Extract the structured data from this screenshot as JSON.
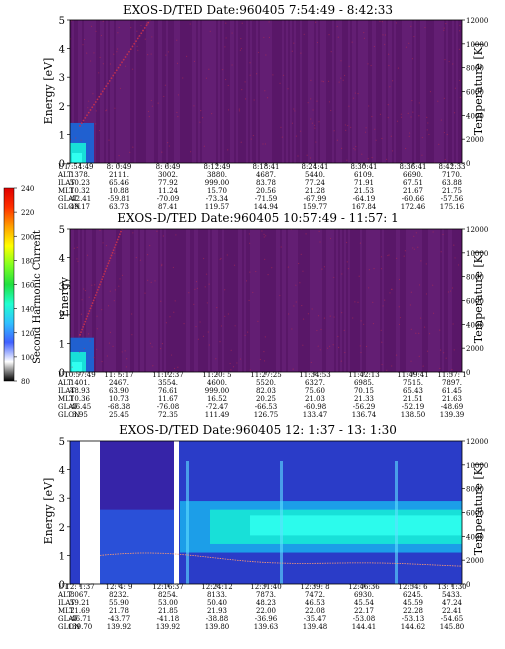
{
  "colors": {
    "background_dark": "#4a1060",
    "background_mid": "#6a2072",
    "background_light": "#5c1e74",
    "band_low": "#2060d0",
    "band_high": "#18e0d8",
    "band_core": "#30fff0",
    "trace_dots": "#c03050",
    "temperature_line": "#ff9a70"
  },
  "colorbar": {
    "label": "Second Harmonic Current",
    "ticks": [
      "80",
      "100",
      "120",
      "140",
      "160",
      "180",
      "200",
      "220",
      "240"
    ],
    "stops": [
      "#000000",
      "#ffffff",
      "#4060ff",
      "#30c0ff",
      "#20ffd0",
      "#20e040",
      "#80ff20",
      "#ffff00",
      "#ffa000",
      "#ff3000",
      "#e00000"
    ]
  },
  "chart_data": [
    {
      "type": "heatmap",
      "title": "EXOS-D/TED   Date:960405  7:54:49 - 8:42:33",
      "ylabel": "Energy [eV]",
      "y2label": "Temperature [K]",
      "ylim": [
        0,
        5
      ],
      "y_ticks": [
        "0",
        "1",
        "2",
        "3",
        "4",
        "5"
      ],
      "y2lim": [
        0,
        12000
      ],
      "y2_ticks": [
        "0",
        "2000",
        "4000",
        "6000",
        "8000",
        "10000",
        "12000"
      ],
      "row_labels": [
        "UT",
        "ALT",
        "ILAT",
        "MLT",
        "GLAT",
        "GLON"
      ],
      "columns": [
        [
          "7:54:49",
          "1378.",
          "50.23",
          "10.32",
          "-42.41",
          "49.17"
        ],
        [
          "8: 0:49",
          "2111.",
          "65.46",
          "10.88",
          "-59.81",
          "63.73"
        ],
        [
          "8: 6:49",
          "3002.",
          "77.92",
          "11.24",
          "-70.09",
          "87.41"
        ],
        [
          "8:12:49",
          "3880.",
          "999.00",
          "15.70",
          "-73.34",
          "119.57"
        ],
        [
          "8:18:41",
          "4687.",
          "83.78",
          "20.56",
          "-71.59",
          "144.94"
        ],
        [
          "8:24:41",
          "5440.",
          "77.24",
          "21.28",
          "-67.99",
          "159.77"
        ],
        [
          "8:30:41",
          "6109.",
          "71.91",
          "21.53",
          "-64.19",
          "167.84"
        ],
        [
          "8:36:41",
          "6690.",
          "67.51",
          "21.67",
          "-60.66",
          "172.46"
        ],
        [
          "8:42:33",
          "7170.",
          "63.88",
          "21.75",
          "-57.56",
          "175.16"
        ]
      ]
    },
    {
      "type": "heatmap",
      "title": "EXOS-D/TED   Date:960405  10:57:49 - 11:57: 1",
      "ylabel": "Energy",
      "y2label": "Temperature [K]",
      "ylim": [
        0,
        5
      ],
      "y_ticks": [
        "0",
        "1",
        "2",
        "3",
        "4",
        "5"
      ],
      "y2lim": [
        0,
        12000
      ],
      "y2_ticks": [
        "0",
        "2000",
        "4000",
        "6000",
        "8000",
        "10000",
        "12000"
      ],
      "row_labels": [
        "UT",
        "ALT",
        "ILAT",
        "MLT",
        "GLAT",
        "GLON"
      ],
      "columns": [
        [
          "10:57:49",
          "1401.",
          "48.93",
          "10.36",
          "-46.45",
          "3.95"
        ],
        [
          "11: 5:17",
          "2467.",
          "63.90",
          "10.73",
          "-68.38",
          "25.45"
        ],
        [
          "11:12:37",
          "3554.",
          "76.61",
          "11.67",
          "-76.08",
          "72.35"
        ],
        [
          "11:20: 5",
          "4600.",
          "999.00",
          "16.52",
          "-72.47",
          "111.49"
        ],
        [
          "11:27:25",
          "5520.",
          "82.03",
          "20.25",
          "-66.53",
          "126.75"
        ],
        [
          "11:34:53",
          "6327.",
          "75.60",
          "21.03",
          "-60.98",
          "133.47"
        ],
        [
          "11:42:13",
          "6985.",
          "70.15",
          "21.33",
          "-56.29",
          "136.74"
        ],
        [
          "11:49:41",
          "7515.",
          "65.43",
          "21.51",
          "-52.19",
          "138.50"
        ],
        [
          "11:57: 1",
          "7897.",
          "61.45",
          "21.63",
          "-48.69",
          "139.39"
        ]
      ]
    },
    {
      "type": "heatmap",
      "title": "EXOS-D/TED   Date:960405  12: 1:37 - 13: 1:30",
      "ylabel": "Energy [eV]",
      "y2label": "Temperature [K]",
      "ylim": [
        0,
        5
      ],
      "y_ticks": [
        "0",
        "1",
        "2",
        "3",
        "4",
        "5"
      ],
      "y2lim": [
        0,
        12000
      ],
      "y2_ticks": [
        "0",
        "2000",
        "4000",
        "6000",
        "8000",
        "10000",
        "12000"
      ],
      "row_labels": [
        "UT",
        "ALT",
        "ILAT",
        "MLT",
        "GLAT",
        "GLON"
      ],
      "columns": [
        [
          "12: 1:37",
          "8067.",
          "59.21",
          "21.69",
          "-46.71",
          "139.70"
        ],
        [
          "12: 4: 9",
          "8232.",
          "55.90",
          "21.78",
          "-43.77",
          "139.92"
        ],
        [
          "12:16:37",
          "8254.",
          "53.00",
          "21.85",
          "-41.18",
          "139.92"
        ],
        [
          "12:24:12",
          "8133.",
          "50.40",
          "21.93",
          "-38.88",
          "139.80"
        ],
        [
          "12:31:40",
          "7873.",
          "48.23",
          "22.00",
          "-36.96",
          "139.63"
        ],
        [
          "12:39: 8",
          "7472.",
          "46.53",
          "22.08",
          "-35.47",
          "139.48"
        ],
        [
          "12:46:36",
          "6930.",
          "45.54",
          "22.17",
          "-53.08",
          "144.41"
        ],
        [
          "12:54: 6",
          "6245.",
          "45.59",
          "22.28",
          "-53.13",
          "144.62"
        ],
        [
          "13: 1:30",
          "5433.",
          "47.24",
          "22.41",
          "-54.65",
          "145.80"
        ]
      ]
    }
  ]
}
